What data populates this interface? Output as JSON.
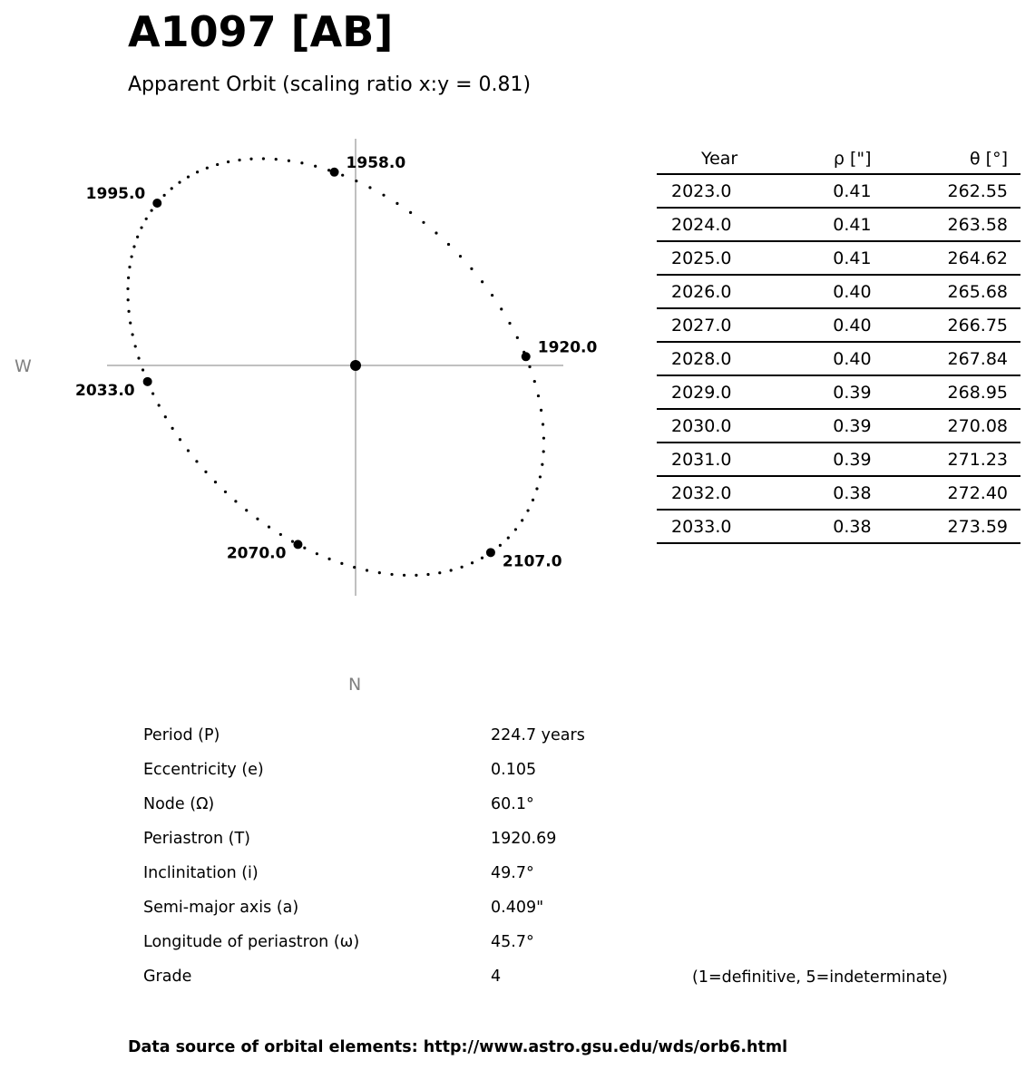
{
  "title": "A1097 [AB]",
  "subtitle": "Apparent Orbit (scaling ratio x:y = 0.81)",
  "chart_data": {
    "type": "scatter",
    "description_directions": {
      "west": "W",
      "north": "N"
    },
    "elements": {
      "P": 224.7,
      "e": 0.105,
      "Omega": 60.1,
      "T": 1920.69,
      "i": 49.7,
      "a": 0.409,
      "omega": 45.7
    },
    "marked_epochs": [
      1920.0,
      1958.0,
      1995.0,
      2033.0,
      2070.0,
      2107.0
    ],
    "marked_labels": [
      "1920.0",
      "1958.0",
      "1995.0",
      "2033.0",
      "2070.0",
      "2107.0"
    ],
    "primary_marker": true,
    "point_color": "#000000",
    "axis_color": "#808080"
  },
  "ephemeris": {
    "headers": [
      "Year",
      "ρ [\"]",
      "θ [°]"
    ],
    "rows": [
      [
        "2023.0",
        "0.41",
        "262.55"
      ],
      [
        "2024.0",
        "0.41",
        "263.58"
      ],
      [
        "2025.0",
        "0.41",
        "264.62"
      ],
      [
        "2026.0",
        "0.40",
        "265.68"
      ],
      [
        "2027.0",
        "0.40",
        "266.75"
      ],
      [
        "2028.0",
        "0.40",
        "267.84"
      ],
      [
        "2029.0",
        "0.39",
        "268.95"
      ],
      [
        "2030.0",
        "0.39",
        "270.08"
      ],
      [
        "2031.0",
        "0.39",
        "271.23"
      ],
      [
        "2032.0",
        "0.38",
        "272.40"
      ],
      [
        "2033.0",
        "0.38",
        "273.59"
      ]
    ]
  },
  "orbital_elements": [
    {
      "label": "Period (P)",
      "value": "224.7 years"
    },
    {
      "label": "Eccentricity (e)",
      "value": "0.105"
    },
    {
      "label": "Node (Ω)",
      "value": "60.1°"
    },
    {
      "label": "Periastron (T)",
      "value": "1920.69"
    },
    {
      "label": "Inclinitation (i)",
      "value": "49.7°"
    },
    {
      "label": "Semi-major axis (a)",
      "value": "0.409\""
    },
    {
      "label": "Longitude of periastron (ω)",
      "value": "45.7°"
    },
    {
      "label": "Grade",
      "value": "4"
    }
  ],
  "grade_note": "(1=definitive, 5=indeterminate)",
  "footer": "Data source of orbital elements: http://www.astro.gsu.edu/wds/orb6.html"
}
